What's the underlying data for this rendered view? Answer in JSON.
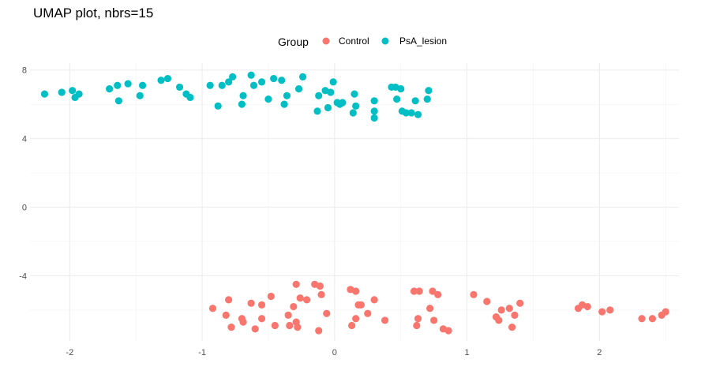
{
  "chart_data": {
    "type": "scatter",
    "title": "UMAP plot, nbrs=15",
    "xlabel": "",
    "ylabel": "",
    "xlim": [
      -2.3,
      2.6
    ],
    "ylim": [
      -7.8,
      8.4
    ],
    "x_ticks": [
      -2,
      -1,
      0,
      1,
      2
    ],
    "y_ticks": [
      -4,
      0,
      4,
      8
    ],
    "x_tick_labels": [
      "-2",
      "-1",
      "0",
      "1",
      "2"
    ],
    "y_tick_labels": [
      "-4",
      "0",
      "4",
      "8"
    ],
    "grid": true,
    "legend": {
      "title": "Group",
      "placement": "top"
    },
    "series": [
      {
        "name": "Control",
        "color": "#F8766D",
        "points": [
          [
            -0.92,
            -5.9
          ],
          [
            -0.8,
            -5.4
          ],
          [
            -0.82,
            -6.3
          ],
          [
            -0.78,
            -7.0
          ],
          [
            -0.69,
            -6.7
          ],
          [
            -0.7,
            -6.5
          ],
          [
            -0.63,
            -5.6
          ],
          [
            -0.6,
            -7.1
          ],
          [
            -0.55,
            -6.5
          ],
          [
            -0.55,
            -5.7
          ],
          [
            -0.48,
            -5.2
          ],
          [
            -0.45,
            -6.9
          ],
          [
            -0.35,
            -6.3
          ],
          [
            -0.31,
            -5.8
          ],
          [
            -0.34,
            -6.9
          ],
          [
            -0.28,
            -7.0
          ],
          [
            -0.29,
            -6.7
          ],
          [
            -0.26,
            -5.3
          ],
          [
            -0.21,
            -5.4
          ],
          [
            -0.29,
            -4.5
          ],
          [
            -0.15,
            -4.5
          ],
          [
            -0.11,
            -4.6
          ],
          [
            -0.1,
            -5.1
          ],
          [
            -0.12,
            -7.2
          ],
          [
            -0.06,
            -6.2
          ],
          [
            0.12,
            -4.8
          ],
          [
            0.16,
            -4.9
          ],
          [
            0.13,
            -6.9
          ],
          [
            0.16,
            -6.5
          ],
          [
            0.18,
            -5.7
          ],
          [
            0.2,
            -5.7
          ],
          [
            0.25,
            -6.2
          ],
          [
            0.3,
            -5.4
          ],
          [
            0.38,
            -6.6
          ],
          [
            0.6,
            -4.9
          ],
          [
            0.64,
            -4.9
          ],
          [
            0.63,
            -6.5
          ],
          [
            0.62,
            -6.9
          ],
          [
            0.72,
            -5.9
          ],
          [
            0.74,
            -4.9
          ],
          [
            0.78,
            -5.1
          ],
          [
            0.75,
            -6.6
          ],
          [
            0.82,
            -7.1
          ],
          [
            0.86,
            -7.2
          ],
          [
            1.05,
            -5.1
          ],
          [
            1.15,
            -5.5
          ],
          [
            1.22,
            -6.4
          ],
          [
            1.24,
            -6.6
          ],
          [
            1.26,
            -6.0
          ],
          [
            1.32,
            -5.9
          ],
          [
            1.34,
            -7.0
          ],
          [
            1.36,
            -6.3
          ],
          [
            1.4,
            -5.6
          ],
          [
            1.84,
            -5.9
          ],
          [
            1.87,
            -5.7
          ],
          [
            1.91,
            -5.8
          ],
          [
            2.02,
            -6.1
          ],
          [
            2.08,
            -6.0
          ],
          [
            2.32,
            -6.5
          ],
          [
            2.4,
            -6.5
          ],
          [
            2.47,
            -6.3
          ],
          [
            2.5,
            -6.1
          ]
        ]
      },
      {
        "name": "PsA_lesion",
        "color": "#00BFC4",
        "points": [
          [
            -2.19,
            6.6
          ],
          [
            -2.06,
            6.7
          ],
          [
            -1.98,
            6.8
          ],
          [
            -1.96,
            6.4
          ],
          [
            -1.93,
            6.6
          ],
          [
            -1.7,
            6.9
          ],
          [
            -1.64,
            7.1
          ],
          [
            -1.63,
            6.2
          ],
          [
            -1.56,
            7.2
          ],
          [
            -1.47,
            6.5
          ],
          [
            -1.45,
            7.1
          ],
          [
            -1.31,
            7.4
          ],
          [
            -1.26,
            7.5
          ],
          [
            -1.17,
            7.0
          ],
          [
            -1.12,
            6.6
          ],
          [
            -1.09,
            6.4
          ],
          [
            -0.94,
            7.1
          ],
          [
            -0.88,
            5.9
          ],
          [
            -0.85,
            7.1
          ],
          [
            -0.8,
            7.3
          ],
          [
            -0.77,
            7.6
          ],
          [
            -0.7,
            6.0
          ],
          [
            -0.69,
            6.5
          ],
          [
            -0.63,
            7.7
          ],
          [
            -0.61,
            7.1
          ],
          [
            -0.55,
            7.3
          ],
          [
            -0.5,
            6.3
          ],
          [
            -0.46,
            7.5
          ],
          [
            -0.4,
            7.4
          ],
          [
            -0.38,
            6.0
          ],
          [
            -0.36,
            6.5
          ],
          [
            -0.27,
            6.9
          ],
          [
            -0.24,
            7.6
          ],
          [
            -0.13,
            5.6
          ],
          [
            -0.12,
            6.5
          ],
          [
            -0.07,
            6.8
          ],
          [
            -0.05,
            5.8
          ],
          [
            -0.03,
            6.7
          ],
          [
            -0.01,
            7.3
          ],
          [
            0.02,
            6.1
          ],
          [
            0.04,
            6.0
          ],
          [
            0.06,
            6.1
          ],
          [
            0.14,
            5.5
          ],
          [
            0.15,
            6.6
          ],
          [
            0.16,
            5.9
          ],
          [
            0.3,
            6.2
          ],
          [
            0.3,
            5.6
          ],
          [
            0.3,
            5.2
          ],
          [
            0.43,
            7.0
          ],
          [
            0.46,
            7.0
          ],
          [
            0.47,
            6.3
          ],
          [
            0.5,
            6.9
          ],
          [
            0.51,
            5.6
          ],
          [
            0.54,
            5.5
          ],
          [
            0.58,
            5.5
          ],
          [
            0.61,
            6.2
          ],
          [
            0.63,
            5.4
          ],
          [
            0.7,
            6.3
          ],
          [
            0.71,
            6.8
          ]
        ]
      }
    ]
  }
}
